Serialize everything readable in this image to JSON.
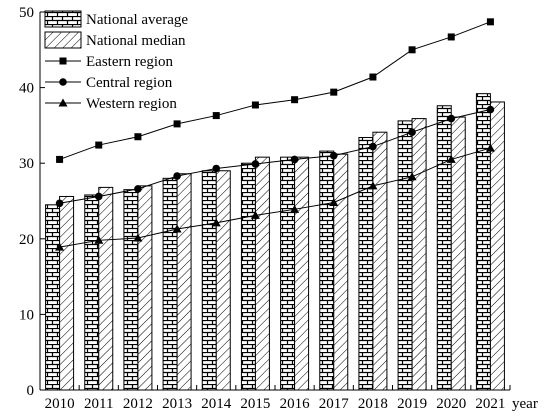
{
  "chart_data": {
    "type": "bar",
    "title": "",
    "xlabel": "year",
    "ylabel": "",
    "ylim": [
      0,
      50
    ],
    "yticks": [
      0,
      10,
      20,
      30,
      40,
      50
    ],
    "grid": false,
    "legend_position": "top-left",
    "categories": [
      "2010",
      "2011",
      "2012",
      "2013",
      "2014",
      "2015",
      "2016",
      "2017",
      "2018",
      "2019",
      "2020",
      "2021"
    ],
    "bar_series": [
      {
        "name": "National average",
        "pattern": "brick",
        "values": [
          24.5,
          25.8,
          26.5,
          28.0,
          29.0,
          30.0,
          30.8,
          31.6,
          33.4,
          35.6,
          37.6,
          39.2
        ]
      },
      {
        "name": "National median",
        "pattern": "diagonal-hatch",
        "values": [
          25.6,
          26.8,
          27.0,
          28.6,
          29.0,
          30.8,
          30.8,
          31.2,
          34.1,
          35.9,
          36.1,
          38.1
        ]
      }
    ],
    "line_series": [
      {
        "name": "Eastern region",
        "marker": "square",
        "values": [
          30.5,
          32.4,
          33.5,
          35.2,
          36.3,
          37.7,
          38.4,
          39.4,
          41.4,
          45.0,
          46.7,
          48.7
        ]
      },
      {
        "name": "Central region",
        "marker": "circle",
        "values": [
          24.7,
          25.6,
          26.6,
          28.3,
          29.3,
          29.9,
          30.5,
          31.0,
          32.2,
          34.1,
          35.9,
          37.1
        ]
      },
      {
        "name": "Western region",
        "marker": "triangle",
        "values": [
          18.9,
          19.8,
          20.1,
          21.3,
          22.1,
          23.1,
          23.9,
          24.8,
          27.0,
          28.2,
          30.5,
          32.0
        ]
      }
    ]
  }
}
